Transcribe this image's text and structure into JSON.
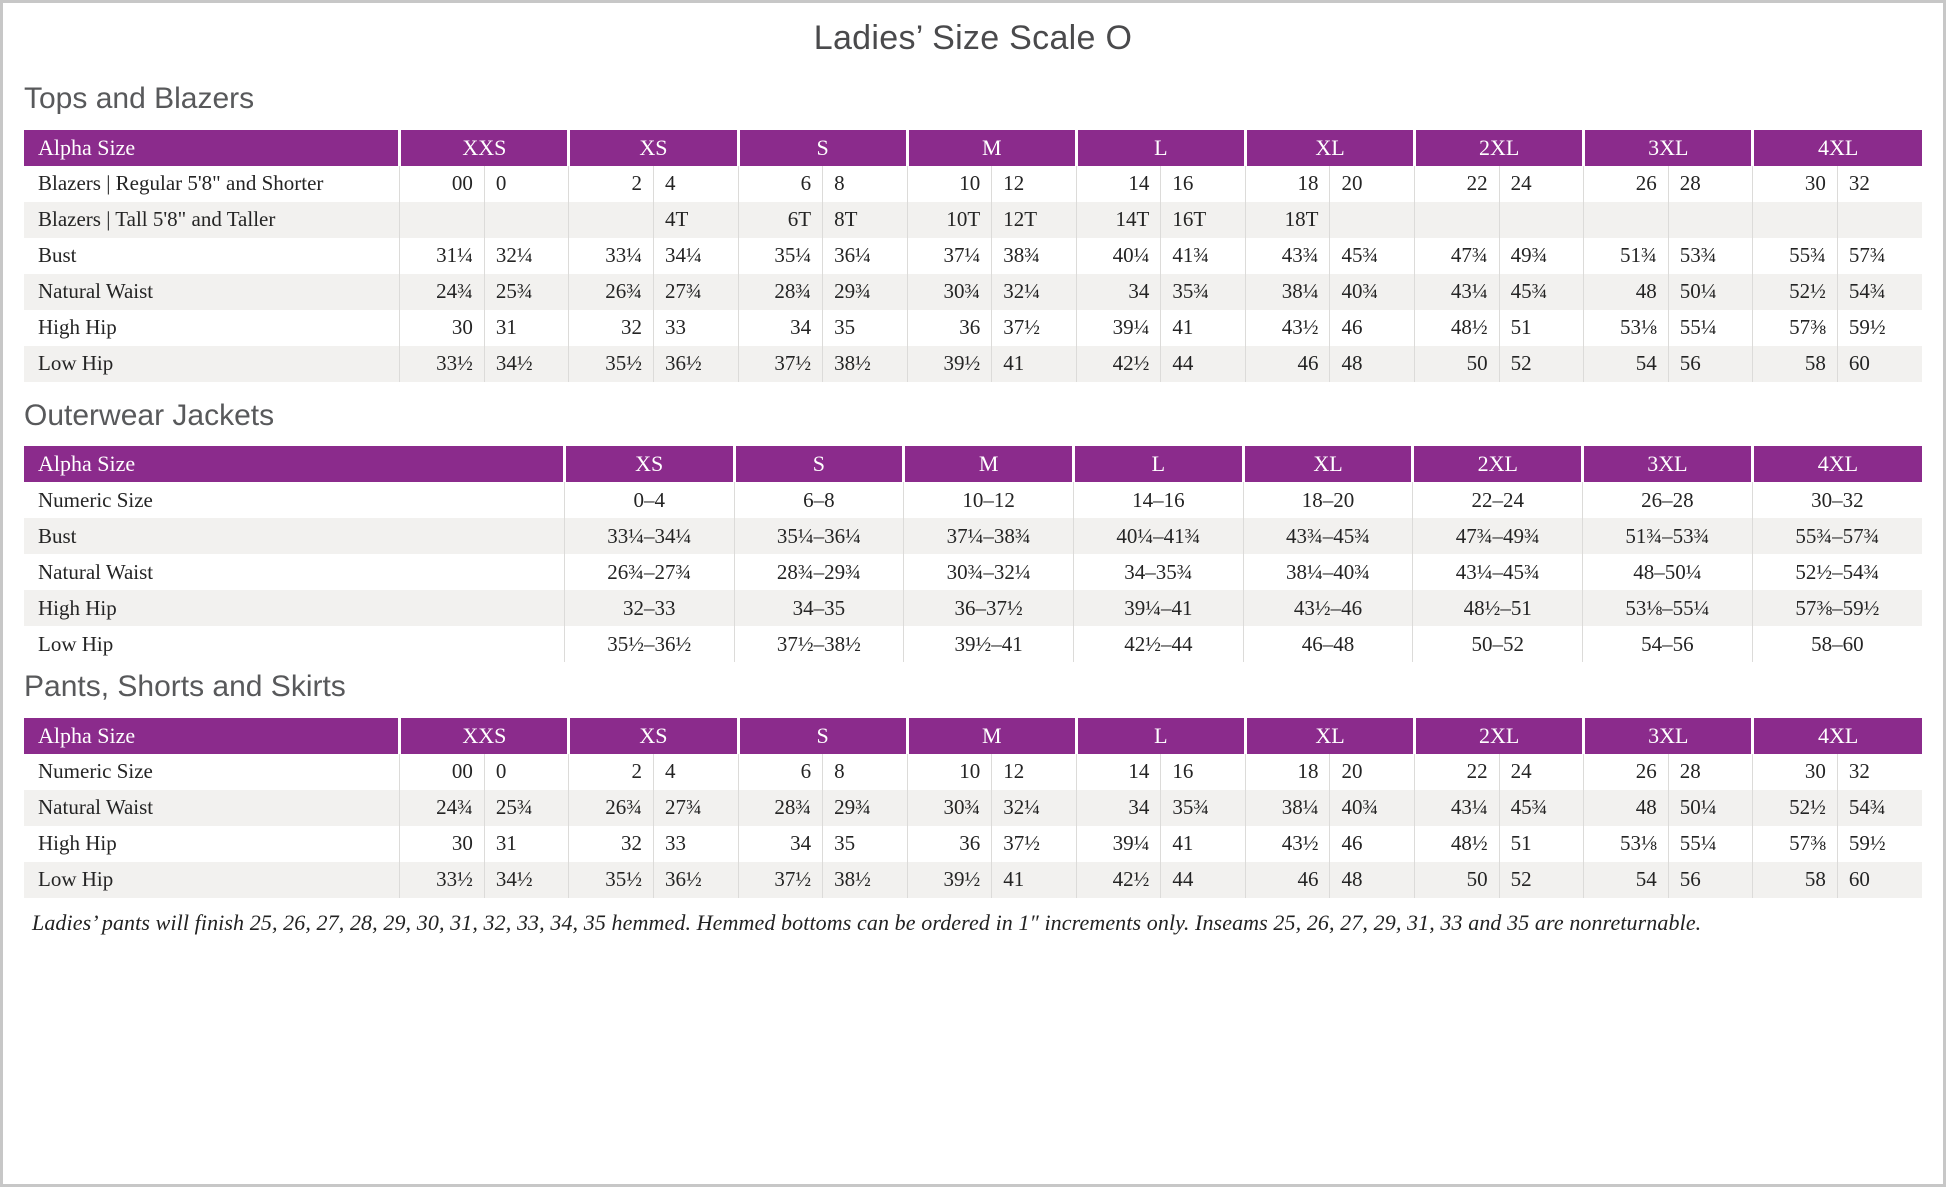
{
  "page_title": "Ladies’ Size Scale O",
  "colors": {
    "header_purple": "#8B2B8C",
    "row_stripe": "#F2F1EF",
    "divider": "#DCDBD9",
    "heading_gray": "#58595B",
    "title_gray": "#4A4A4C",
    "body_text": "#242424"
  },
  "tables": [
    {
      "heading": "Tops and Blazers",
      "header_label": "Alpha Size",
      "paired": true,
      "sizes": [
        "XXS",
        "XS",
        "S",
        "M",
        "L",
        "XL",
        "2XL",
        "3XL",
        "4XL"
      ],
      "rows": [
        {
          "label": "Blazers | Regular 5'8\" and Shorter",
          "values": [
            "00",
            "0",
            "2",
            "4",
            "6",
            "8",
            "10",
            "12",
            "14",
            "16",
            "18",
            "20",
            "22",
            "24",
            "26",
            "28",
            "30",
            "32"
          ]
        },
        {
          "label": "Blazers | Tall 5'8\" and Taller",
          "values": [
            "",
            "",
            "",
            "4T",
            "6T",
            "8T",
            "10T",
            "12T",
            "14T",
            "16T",
            "18T",
            "",
            "",
            "",
            "",
            "",
            "",
            ""
          ]
        },
        {
          "label": "Bust",
          "values": [
            "31¼",
            "32¼",
            "33¼",
            "34¼",
            "35¼",
            "36¼",
            "37¼",
            "38¾",
            "40¼",
            "41¾",
            "43¾",
            "45¾",
            "47¾",
            "49¾",
            "51¾",
            "53¾",
            "55¾",
            "57¾"
          ]
        },
        {
          "label": "Natural Waist",
          "values": [
            "24¾",
            "25¾",
            "26¾",
            "27¾",
            "28¾",
            "29¾",
            "30¾",
            "32¼",
            "34",
            "35¾",
            "38¼",
            "40¾",
            "43¼",
            "45¾",
            "48",
            "50¼",
            "52½",
            "54¾"
          ]
        },
        {
          "label": "High Hip",
          "values": [
            "30",
            "31",
            "32",
            "33",
            "34",
            "35",
            "36",
            "37½",
            "39¼",
            "41",
            "43½",
            "46",
            "48½",
            "51",
            "53⅛",
            "55¼",
            "57⅜",
            "59½"
          ]
        },
        {
          "label": "Low Hip",
          "values": [
            "33½",
            "34½",
            "35½",
            "36½",
            "37½",
            "38½",
            "39½",
            "41",
            "42½",
            "44",
            "46",
            "48",
            "50",
            "52",
            "54",
            "56",
            "58",
            "60"
          ]
        }
      ]
    },
    {
      "heading": "Outerwear Jackets",
      "header_label": "Alpha Size",
      "paired": false,
      "sizes": [
        "XS",
        "S",
        "M",
        "L",
        "XL",
        "2XL",
        "3XL",
        "4XL"
      ],
      "rows": [
        {
          "label": "Numeric Size",
          "values": [
            "0–4",
            "6–8",
            "10–12",
            "14–16",
            "18–20",
            "22–24",
            "26–28",
            "30–32"
          ]
        },
        {
          "label": "Bust",
          "values": [
            "33¼–34¼",
            "35¼–36¼",
            "37¼–38¾",
            "40¼–41¾",
            "43¾–45¾",
            "47¾–49¾",
            "51¾–53¾",
            "55¾–57¾"
          ]
        },
        {
          "label": "Natural Waist",
          "values": [
            "26¾–27¾",
            "28¾–29¾",
            "30¾–32¼",
            "34–35¾",
            "38¼–40¾",
            "43¼–45¾",
            "48–50¼",
            "52½–54¾"
          ]
        },
        {
          "label": "High Hip",
          "values": [
            "32–33",
            "34–35",
            "36–37½",
            "39¼–41",
            "43½–46",
            "48½–51",
            "53⅛–55¼",
            "57⅜–59½"
          ]
        },
        {
          "label": "Low Hip",
          "values": [
            "35½–36½",
            "37½–38½",
            "39½–41",
            "42½–44",
            "46–48",
            "50–52",
            "54–56",
            "58–60"
          ]
        }
      ]
    },
    {
      "heading": "Pants, Shorts and Skirts",
      "header_label": "Alpha Size",
      "paired": true,
      "sizes": [
        "XXS",
        "XS",
        "S",
        "M",
        "L",
        "XL",
        "2XL",
        "3XL",
        "4XL"
      ],
      "rows": [
        {
          "label": "Numeric Size",
          "values": [
            "00",
            "0",
            "2",
            "4",
            "6",
            "8",
            "10",
            "12",
            "14",
            "16",
            "18",
            "20",
            "22",
            "24",
            "26",
            "28",
            "30",
            "32"
          ]
        },
        {
          "label": "Natural Waist",
          "values": [
            "24¾",
            "25¾",
            "26¾",
            "27¾",
            "28¾",
            "29¾",
            "30¾",
            "32¼",
            "34",
            "35¾",
            "38¼",
            "40¾",
            "43¼",
            "45¾",
            "48",
            "50¼",
            "52½",
            "54¾"
          ]
        },
        {
          "label": "High Hip",
          "values": [
            "30",
            "31",
            "32",
            "33",
            "34",
            "35",
            "36",
            "37½",
            "39¼",
            "41",
            "43½",
            "46",
            "48½",
            "51",
            "53⅛",
            "55¼",
            "57⅜",
            "59½"
          ]
        },
        {
          "label": "Low Hip",
          "values": [
            "33½",
            "34½",
            "35½",
            "36½",
            "37½",
            "38½",
            "39½",
            "41",
            "42½",
            "44",
            "46",
            "48",
            "50",
            "52",
            "54",
            "56",
            "58",
            "60"
          ]
        }
      ]
    }
  ],
  "footnote": "Ladies’ pants will finish 25, 26, 27, 28, 29, 30, 31, 32, 33, 34, 35 hemmed. Hemmed bottoms can be ordered in 1″ increments only. Inseams 25, 26, 27, 29, 31, 33 and 35 are nonreturnable."
}
